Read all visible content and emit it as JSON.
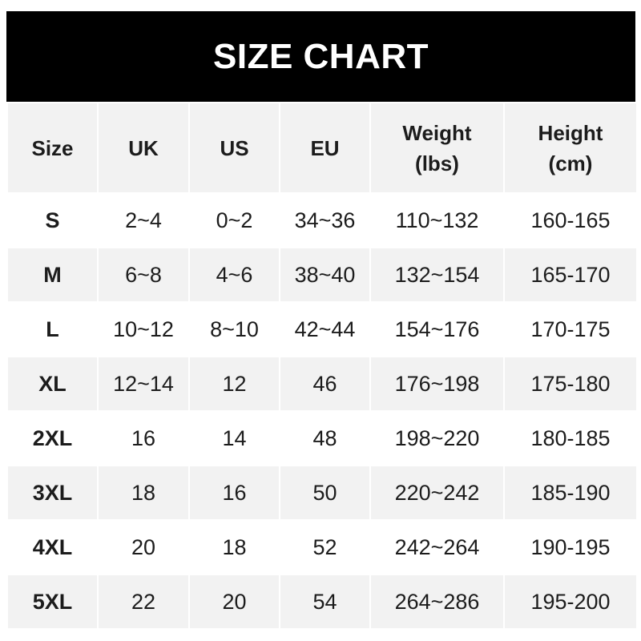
{
  "title": "SIZE CHART",
  "headers": [
    "Size",
    "UK",
    "US",
    "EU",
    "Weight\n(lbs)",
    "Height\n(cm)"
  ],
  "header_lines": [
    [
      "Size"
    ],
    [
      "UK"
    ],
    [
      "US"
    ],
    [
      "EU"
    ],
    [
      "Weight",
      "(lbs)"
    ],
    [
      "Height",
      "(cm)"
    ]
  ],
  "rows": [
    [
      "S",
      "2~4",
      "0~2",
      "34~36",
      "110~132",
      "160-165"
    ],
    [
      "M",
      "6~8",
      "4~6",
      "38~40",
      "132~154",
      "165-170"
    ],
    [
      "L",
      "10~12",
      "8~10",
      "42~44",
      "154~176",
      "170-175"
    ],
    [
      "XL",
      "12~14",
      "12",
      "46",
      "176~198",
      "175-180"
    ],
    [
      "2XL",
      "16",
      "14",
      "48",
      "198~220",
      "180-185"
    ],
    [
      "3XL",
      "18",
      "16",
      "50",
      "220~242",
      "185-190"
    ],
    [
      "4XL",
      "20",
      "18",
      "52",
      "242~264",
      "190-195"
    ],
    [
      "5XL",
      "22",
      "20",
      "54",
      "264~286",
      "195-200"
    ]
  ],
  "colors": {
    "title_bg": "#000000",
    "title_text": "#ffffff",
    "alt_row_bg": "#f2f2f2",
    "text": "#1c1c1c"
  }
}
